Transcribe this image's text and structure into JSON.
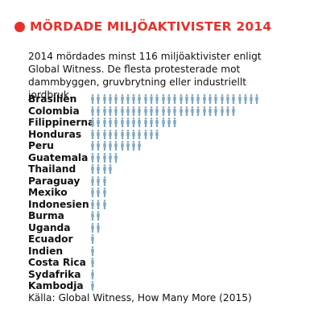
{
  "header": {
    "title": "MÖRDADE MILJÖAKTIVISTER 2014"
  },
  "intro": {
    "text": "2014 mördades minst 116 miljöaktivister enligt Global Witness. De flesta protesterade mot dammbyggen, gruvbrytning eller industriellt jordbruk."
  },
  "source": {
    "text": "Källa: Global Witness, How Many More (2015)"
  },
  "colors": {
    "accent": "#e6322d",
    "person": "#7fa8c4"
  },
  "chart_data": {
    "type": "bar",
    "title": "MÖRDADE MILJÖAKTIVISTER 2014",
    "categories": [
      "Brasilien",
      "Colombia",
      "Filippinerna",
      "Honduras",
      "Peru",
      "Guatemala",
      "Thailand",
      "Paraguay",
      "Mexiko",
      "Indonesien",
      "Burma",
      "Uganda",
      "Ecuador",
      "Indien",
      "Costa Rica",
      "Sydafrika",
      "Kambodja"
    ],
    "values": [
      29,
      25,
      15,
      12,
      9,
      5,
      4,
      3,
      3,
      3,
      2,
      2,
      1,
      1,
      1,
      1,
      1
    ],
    "unit_icon": "person-icon",
    "xlabel": "",
    "ylabel": "",
    "grid": false,
    "legend": "none"
  }
}
